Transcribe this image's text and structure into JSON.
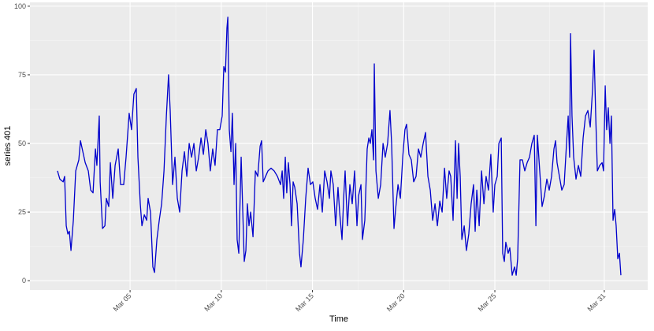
{
  "chart_data": {
    "type": "line",
    "xlabel": "Time",
    "ylabel": "series 401",
    "color": "#0000cc",
    "grid": true,
    "xlim": [
      -0.49,
      33.38
    ],
    "ylim": [
      -3.4,
      101.4
    ],
    "xticks": [
      {
        "value": 5,
        "label": "Mar 05"
      },
      {
        "value": 10,
        "label": "Mar 10"
      },
      {
        "value": 15,
        "label": "Mar 15"
      },
      {
        "value": 20,
        "label": "Mar 20"
      },
      {
        "value": 25,
        "label": "Mar 25"
      },
      {
        "value": 31,
        "label": "Mar 31"
      }
    ],
    "yticks": [
      0,
      25,
      50,
      75,
      100
    ],
    "x": [
      1.02,
      1.15,
      1.33,
      1.41,
      1.5,
      1.59,
      1.67,
      1.76,
      1.89,
      2.02,
      2.19,
      2.28,
      2.41,
      2.54,
      2.71,
      2.84,
      2.97,
      3.1,
      3.18,
      3.31,
      3.36,
      3.49,
      3.62,
      3.7,
      3.83,
      3.92,
      4.05,
      4.18,
      4.35,
      4.48,
      4.65,
      4.78,
      4.95,
      5.08,
      5.21,
      5.34,
      5.43,
      5.56,
      5.65,
      5.78,
      5.91,
      5.99,
      6.12,
      6.25,
      6.34,
      6.47,
      6.6,
      6.73,
      6.86,
      6.99,
      7.11,
      7.2,
      7.33,
      7.46,
      7.59,
      7.72,
      7.85,
      7.98,
      8.11,
      8.24,
      8.37,
      8.5,
      8.63,
      8.76,
      8.89,
      9.02,
      9.15,
      9.27,
      9.4,
      9.53,
      9.66,
      9.79,
      9.92,
      10.05,
      10.14,
      10.23,
      10.31,
      10.36,
      10.44,
      10.53,
      10.61,
      10.7,
      10.79,
      10.87,
      10.96,
      11.09,
      11.18,
      11.26,
      11.35,
      11.43,
      11.52,
      11.61,
      11.74,
      11.87,
      12.0,
      12.13,
      12.21,
      12.3,
      12.43,
      12.56,
      12.73,
      12.9,
      13.08,
      13.25,
      13.34,
      13.42,
      13.51,
      13.59,
      13.68,
      13.77,
      13.85,
      13.94,
      14.03,
      14.16,
      14.29,
      14.37,
      14.5,
      14.63,
      14.76,
      14.89,
      15.02,
      15.15,
      15.28,
      15.41,
      15.54,
      15.67,
      15.8,
      15.93,
      16.01,
      16.14,
      16.27,
      16.4,
      16.49,
      16.62,
      16.71,
      16.79,
      16.92,
      17.05,
      17.18,
      17.31,
      17.44,
      17.53,
      17.66,
      17.74,
      17.87,
      18.0,
      18.09,
      18.17,
      18.26,
      18.35,
      18.39,
      18.48,
      18.61,
      18.74,
      18.87,
      18.99,
      19.12,
      19.25,
      19.34,
      19.47,
      19.56,
      19.69,
      19.82,
      19.95,
      20.07,
      20.16,
      20.29,
      20.42,
      20.55,
      20.68,
      20.81,
      20.94,
      21.07,
      21.2,
      21.33,
      21.46,
      21.59,
      21.72,
      21.85,
      21.98,
      22.11,
      22.24,
      22.36,
      22.49,
      22.58,
      22.71,
      22.84,
      22.93,
      23.01,
      23.1,
      23.19,
      23.32,
      23.44,
      23.57,
      23.7,
      23.83,
      23.92,
      24.01,
      24.14,
      24.27,
      24.4,
      24.52,
      24.65,
      24.78,
      24.91,
      25.0,
      25.13,
      25.22,
      25.35,
      25.43,
      25.52,
      25.6,
      25.73,
      25.82,
      25.95,
      26.08,
      26.17,
      26.25,
      26.38,
      26.51,
      26.64,
      26.77,
      26.9,
      27.03,
      27.16,
      27.25,
      27.33,
      27.46,
      27.59,
      27.72,
      27.85,
      27.98,
      28.11,
      28.24,
      28.33,
      28.41,
      28.54,
      28.67,
      28.8,
      28.93,
      29.02,
      29.1,
      29.15,
      29.23,
      29.32,
      29.45,
      29.58,
      29.71,
      29.84,
      29.97,
      30.1,
      30.23,
      30.36,
      30.44,
      30.53,
      30.62,
      30.75,
      30.88,
      30.96,
      31.05,
      31.13,
      31.22,
      31.31,
      31.39,
      31.48,
      31.57,
      31.65,
      31.74,
      31.83,
      31.91
    ],
    "values": [
      40,
      37,
      36,
      38,
      20,
      17,
      18,
      11,
      22,
      40,
      44,
      51,
      47,
      43,
      40,
      33,
      32,
      48,
      42,
      60,
      36,
      19,
      20,
      30,
      27,
      43,
      30,
      42,
      48,
      35,
      35,
      45,
      61,
      55,
      68,
      70,
      45,
      28,
      20,
      24,
      22,
      30,
      25,
      5,
      3,
      15,
      22,
      28,
      40,
      60,
      75,
      62,
      35,
      45,
      30,
      25,
      40,
      47,
      38,
      50,
      45,
      50,
      40,
      45,
      52,
      46,
      55,
      50,
      40,
      48,
      42,
      55,
      55,
      60,
      78,
      76,
      92,
      96,
      55,
      47,
      61,
      35,
      50,
      15,
      10,
      45,
      25,
      7,
      11,
      28,
      20,
      25,
      16,
      40,
      38,
      49,
      51,
      36,
      38,
      40,
      41,
      40,
      38,
      35,
      40,
      30,
      45,
      32,
      43,
      35,
      20,
      36,
      34,
      28,
      10,
      5,
      15,
      30,
      41,
      35,
      36,
      30,
      26,
      35,
      25,
      40,
      36,
      30,
      40,
      35,
      20,
      34,
      25,
      15,
      30,
      40,
      20,
      35,
      28,
      40,
      20,
      31,
      35,
      15,
      22,
      48,
      52,
      50,
      55,
      44,
      79,
      40,
      30,
      35,
      50,
      45,
      50,
      62,
      50,
      19,
      26,
      35,
      30,
      45,
      55,
      57,
      46,
      44,
      36,
      38,
      48,
      45,
      50,
      54,
      38,
      33,
      22,
      28,
      20,
      29,
      25,
      41,
      30,
      40,
      38,
      22,
      51,
      30,
      50,
      38,
      15,
      20,
      11,
      17,
      28,
      35,
      18,
      33,
      20,
      40,
      28,
      38,
      33,
      46,
      25,
      35,
      38,
      50,
      52,
      10,
      7,
      14,
      10,
      12,
      2,
      5,
      2,
      8,
      44,
      44,
      40,
      43,
      45,
      50,
      53,
      20,
      53,
      40,
      27,
      31,
      37,
      33,
      38,
      48,
      51,
      43,
      38,
      33,
      35,
      50,
      60,
      45,
      90,
      60,
      45,
      37,
      42,
      38,
      52,
      60,
      62,
      56,
      70,
      84,
      60,
      40,
      42,
      43,
      40,
      71,
      55,
      63,
      50,
      60,
      22,
      26,
      20,
      8,
      10,
      2
    ]
  }
}
